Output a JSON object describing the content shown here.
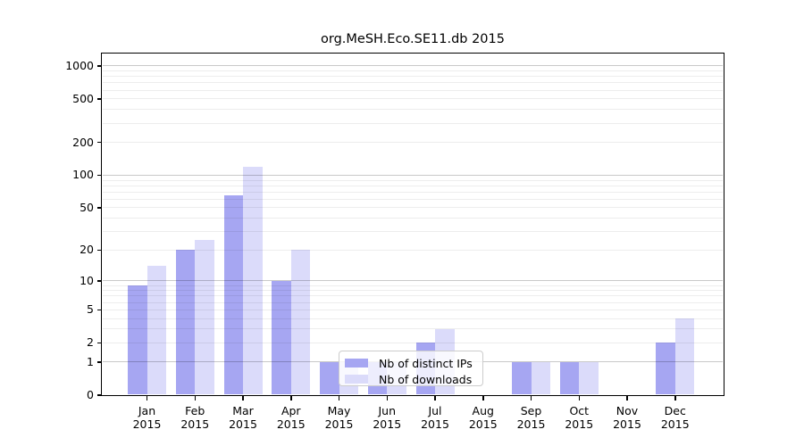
{
  "title": "org.MeSH.Eco.SE11.db 2015",
  "colors": {
    "distinct_ips_bar": "#a6a6f2",
    "downloads_bar": "#dbdbfa",
    "grid_major": "rgba(0,0,0,0.21)",
    "grid_minor": "rgba(0,0,0,0.07)",
    "axis": "#000000",
    "legend_border": "#cccccc"
  },
  "y_axis": {
    "ticks": [
      0,
      1,
      2,
      5,
      10,
      20,
      50,
      100,
      200,
      500,
      1000
    ]
  },
  "x_axis": {
    "months": [
      {
        "month": "Jan",
        "year": "2015"
      },
      {
        "month": "Feb",
        "year": "2015"
      },
      {
        "month": "Mar",
        "year": "2015"
      },
      {
        "month": "Apr",
        "year": "2015"
      },
      {
        "month": "May",
        "year": "2015"
      },
      {
        "month": "Jun",
        "year": "2015"
      },
      {
        "month": "Jul",
        "year": "2015"
      },
      {
        "month": "Aug",
        "year": "2015"
      },
      {
        "month": "Sep",
        "year": "2015"
      },
      {
        "month": "Oct",
        "year": "2015"
      },
      {
        "month": "Nov",
        "year": "2015"
      },
      {
        "month": "Dec",
        "year": "2015"
      }
    ]
  },
  "legend": {
    "entries": [
      "Nb of distinct IPs",
      "Nb of downloads"
    ]
  },
  "chart_data": {
    "type": "bar",
    "title": "org.MeSH.Eco.SE11.db 2015",
    "categories": [
      "Jan 2015",
      "Feb 2015",
      "Mar 2015",
      "Apr 2015",
      "May 2015",
      "Jun 2015",
      "Jul 2015",
      "Aug 2015",
      "Sep 2015",
      "Oct 2015",
      "Nov 2015",
      "Dec 2015"
    ],
    "series": [
      {
        "name": "Nb of distinct IPs",
        "key": "distinct_ips",
        "values": [
          9,
          20,
          65,
          10,
          1,
          1,
          2,
          0,
          1,
          1,
          0,
          2
        ]
      },
      {
        "name": "Nb of downloads",
        "key": "downloads",
        "values": [
          14,
          25,
          120,
          20,
          1,
          1,
          3,
          0,
          1,
          1,
          0,
          4
        ]
      }
    ],
    "yscale": "log10(value+1)",
    "yticks": [
      0,
      1,
      2,
      5,
      10,
      20,
      50,
      100,
      200,
      500,
      1000
    ],
    "ylim": [
      0,
      1300
    ],
    "xlabel": "",
    "ylabel": "",
    "grid": true,
    "grid_above_bars": true,
    "legend_position": "inside-bottom-center"
  }
}
